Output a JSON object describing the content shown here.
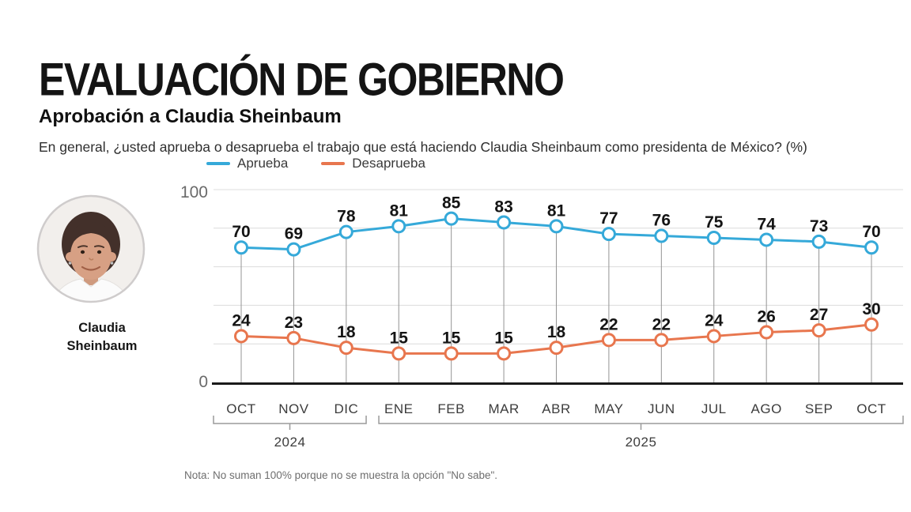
{
  "header": {
    "title": "EVALUACIÓN DE GOBIERNO",
    "subtitle": "Aprobación a Claudia Sheinbaum",
    "question": "En general, ¿usted aprueba o desaprueba el trabajo que está haciendo Claudia Sheinbaum como presidenta de México?  (%)"
  },
  "legend": [
    {
      "label": "Aprueba",
      "color": "#35a9d9"
    },
    {
      "label": "Desaprueba",
      "color": "#e8764e"
    }
  ],
  "person": {
    "name_line1": "Claudia",
    "name_line2": "Sheinbaum"
  },
  "note": "Nota: No suman 100% porque no se muestra la opción \"No sabe\".",
  "chart_data": {
    "type": "line",
    "categories": [
      "OCT",
      "NOV",
      "DIC",
      "ENE",
      "FEB",
      "MAR",
      "ABR",
      "MAY",
      "JUN",
      "JUL",
      "AGO",
      "SEP",
      "OCT"
    ],
    "year_groups": [
      {
        "label": "2024",
        "start": 0,
        "end": 2
      },
      {
        "label": "2025",
        "start": 3,
        "end": 12
      }
    ],
    "series": [
      {
        "name": "Aprueba",
        "color": "#35a9d9",
        "values": [
          70,
          69,
          78,
          81,
          85,
          83,
          81,
          77,
          76,
          75,
          74,
          73,
          70
        ]
      },
      {
        "name": "Desaprueba",
        "color": "#e8764e",
        "values": [
          24,
          23,
          18,
          15,
          15,
          15,
          18,
          22,
          22,
          24,
          26,
          27,
          30
        ]
      }
    ],
    "ylim": [
      0,
      100
    ],
    "yticks": [
      0,
      100
    ],
    "gridline_values": [
      20,
      40,
      60,
      80,
      100
    ],
    "grid": true,
    "legend_position": "top",
    "axis_color": "#1a1a1a",
    "gridline_color": "#dcdcdc",
    "point_line_color": "#949494",
    "bracket_color": "#9a9a9a"
  }
}
